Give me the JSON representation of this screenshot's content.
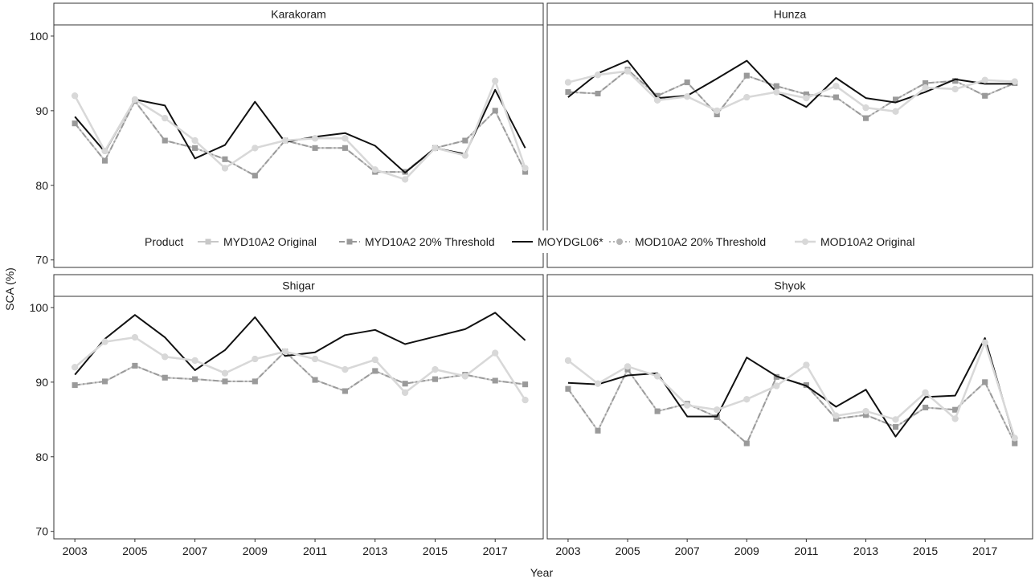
{
  "chart_data": {
    "type": "line",
    "facet_layout": "2x2",
    "xlabel": "Year",
    "ylabel": "SCA (%)",
    "ylim": [
      69,
      101.5
    ],
    "xlim": [
      2002.3,
      2018.6
    ],
    "yticks": [
      70,
      80,
      90,
      100
    ],
    "xticks": [
      2003,
      2005,
      2007,
      2009,
      2011,
      2013,
      2015,
      2017
    ],
    "legend": {
      "title": "Product",
      "position": "center, between panel rows"
    },
    "series_styles": [
      {
        "name": "MYD10A2 Original",
        "color": "#c8c8c8",
        "width": 2,
        "dash": "",
        "marker": "square"
      },
      {
        "name": "MYD10A2 20% Threshold",
        "color": "#9a9a9a",
        "width": 2,
        "dash": "7,3,2,3",
        "marker": "square"
      },
      {
        "name": "MOYDGL06*",
        "color": "#111111",
        "width": 2,
        "dash": "",
        "marker": "none"
      },
      {
        "name": "MOD10A2 20% Threshold",
        "color": "#b4b4b4",
        "width": 2,
        "dash": "2,3",
        "marker": "circle"
      },
      {
        "name": "MOD10A2 Original",
        "color": "#d8d8d8",
        "width": 2.5,
        "dash": "",
        "marker": "circle"
      }
    ],
    "x": [
      2003,
      2004,
      2005,
      2006,
      2007,
      2008,
      2009,
      2010,
      2011,
      2012,
      2013,
      2014,
      2015,
      2016,
      2017,
      2018
    ],
    "panels": [
      {
        "title": "Karakoram",
        "series": [
          {
            "name": "MYD10A2 Original",
            "values": [
              88.3,
              83.3,
              91.3,
              86.0,
              85.0,
              83.5,
              81.3,
              86.0,
              85.0,
              85.0,
              81.8,
              81.8,
              85.0,
              86.0,
              90.0,
              81.8
            ]
          },
          {
            "name": "MYD10A2 20% Threshold",
            "values": [
              88.3,
              83.3,
              91.3,
              86.0,
              85.0,
              83.5,
              81.3,
              86.0,
              85.0,
              85.0,
              81.8,
              81.8,
              85.0,
              86.0,
              90.0,
              81.8
            ]
          },
          {
            "name": "MOYDGL06*",
            "values": [
              89.2,
              84.5,
              91.5,
              90.7,
              83.6,
              85.4,
              91.2,
              85.8,
              86.5,
              87.0,
              85.3,
              81.7,
              85.0,
              84.2,
              92.8,
              85.0
            ]
          },
          {
            "name": "MOD10A2 20% Threshold",
            "values": [
              92.0,
              84.6,
              91.5,
              89.0,
              86.0,
              82.3,
              85.0,
              86.0,
              86.3,
              86.3,
              82.1,
              80.8,
              85.0,
              84.0,
              94.0,
              82.3
            ]
          },
          {
            "name": "MOD10A2 Original",
            "values": [
              92.0,
              84.6,
              91.5,
              89.0,
              86.0,
              82.3,
              85.0,
              86.0,
              86.3,
              86.3,
              82.1,
              80.8,
              85.0,
              84.0,
              94.0,
              82.3
            ]
          }
        ]
      },
      {
        "title": "Hunza",
        "series": [
          {
            "name": "MYD10A2 Original",
            "values": [
              92.5,
              92.3,
              95.5,
              92.0,
              93.8,
              89.5,
              94.7,
              93.3,
              92.2,
              91.8,
              89.0,
              91.5,
              93.7,
              94.0,
              92.0,
              93.7
            ]
          },
          {
            "name": "MYD10A2 20% Threshold",
            "values": [
              92.5,
              92.3,
              95.5,
              92.0,
              93.8,
              89.5,
              94.7,
              93.3,
              92.2,
              91.8,
              89.0,
              91.5,
              93.7,
              94.0,
              92.0,
              93.7
            ]
          },
          {
            "name": "MOYDGL06*",
            "values": [
              91.8,
              95.0,
              96.7,
              91.7,
              92.0,
              94.3,
              96.7,
              92.5,
              90.5,
              94.4,
              91.7,
              91.1,
              92.5,
              94.2,
              93.6,
              93.6
            ]
          },
          {
            "name": "MOD10A2 20% Threshold",
            "values": [
              93.8,
              94.8,
              95.3,
              91.4,
              91.9,
              90.0,
              91.8,
              92.5,
              91.7,
              93.3,
              90.4,
              89.9,
              93.1,
              92.9,
              94.1,
              93.9
            ]
          },
          {
            "name": "MOD10A2 Original",
            "values": [
              93.8,
              94.8,
              95.3,
              91.4,
              91.9,
              90.0,
              91.8,
              92.5,
              91.7,
              93.3,
              90.4,
              89.9,
              93.1,
              92.9,
              94.1,
              93.9
            ]
          }
        ]
      },
      {
        "title": "Shigar",
        "series": [
          {
            "name": "MYD10A2 Original",
            "values": [
              89.6,
              90.1,
              92.2,
              90.6,
              90.4,
              90.1,
              90.1,
              94.1,
              90.3,
              88.8,
              91.5,
              89.8,
              90.4,
              91.0,
              90.2,
              89.7
            ]
          },
          {
            "name": "MYD10A2 20% Threshold",
            "values": [
              89.6,
              90.1,
              92.2,
              90.6,
              90.4,
              90.1,
              90.1,
              94.1,
              90.3,
              88.8,
              91.5,
              89.8,
              90.4,
              91.0,
              90.2,
              89.7
            ]
          },
          {
            "name": "MOYDGL06*",
            "values": [
              91.0,
              95.8,
              99.0,
              96.0,
              91.6,
              94.3,
              98.7,
              93.5,
              94.0,
              96.3,
              97.0,
              95.1,
              96.1,
              97.1,
              99.3,
              95.6
            ]
          },
          {
            "name": "MOD10A2 20% Threshold",
            "values": [
              92.0,
              95.4,
              96.0,
              93.4,
              92.9,
              91.2,
              93.1,
              94.1,
              93.1,
              91.7,
              93.0,
              88.6,
              91.7,
              90.8,
              93.9,
              87.6
            ]
          },
          {
            "name": "MOD10A2 Original",
            "values": [
              92.0,
              95.4,
              96.0,
              93.4,
              92.9,
              91.2,
              93.1,
              94.1,
              93.1,
              91.7,
              93.0,
              88.6,
              91.7,
              90.8,
              93.9,
              87.6
            ]
          }
        ]
      },
      {
        "title": "Shyok",
        "series": [
          {
            "name": "MYD10A2 Original",
            "values": [
              89.1,
              83.5,
              91.7,
              86.1,
              87.1,
              85.3,
              81.8,
              90.7,
              89.6,
              85.1,
              85.6,
              84.0,
              86.6,
              86.3,
              90.0,
              81.8
            ]
          },
          {
            "name": "MYD10A2 20% Threshold",
            "values": [
              89.1,
              83.5,
              91.7,
              86.1,
              87.1,
              85.3,
              81.8,
              90.7,
              89.6,
              85.1,
              85.6,
              84.0,
              86.6,
              86.3,
              90.0,
              81.8
            ]
          },
          {
            "name": "MOYDGL06*",
            "values": [
              89.9,
              89.7,
              90.9,
              91.2,
              85.4,
              85.4,
              93.3,
              90.8,
              89.5,
              86.7,
              89.0,
              82.7,
              88.0,
              88.2,
              95.9,
              82.2
            ]
          },
          {
            "name": "MOD10A2 20% Threshold",
            "values": [
              92.9,
              89.8,
              92.1,
              90.8,
              86.9,
              86.3,
              87.7,
              89.5,
              92.3,
              85.5,
              86.1,
              85.0,
              88.6,
              85.1,
              95.3,
              82.5
            ]
          },
          {
            "name": "MOD10A2 Original",
            "values": [
              92.9,
              89.8,
              92.1,
              90.8,
              86.9,
              86.3,
              87.7,
              89.5,
              92.3,
              85.5,
              86.1,
              85.0,
              88.6,
              85.1,
              95.3,
              82.5
            ]
          }
        ]
      }
    ]
  }
}
